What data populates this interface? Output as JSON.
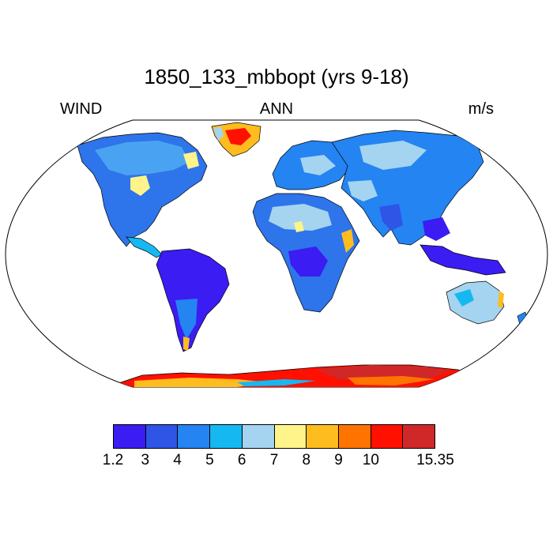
{
  "title": "1850_133_mbbopt (yrs 9-18)",
  "left_label": "WIND",
  "center_label": "ANN",
  "right_label": "m/s",
  "colorbar": {
    "labels": [
      "1.2",
      "3",
      "4",
      "5",
      "6",
      "7",
      "8",
      "9",
      "10",
      "15.35"
    ],
    "colors": [
      "#3b1cf2",
      "#2e55e6",
      "#2384f2",
      "#16b8f2",
      "#a4d4f0",
      "#fff48a",
      "#ffbc1e",
      "#ff7400",
      "#ff1000",
      "#d02828"
    ]
  },
  "map": {
    "projection": "Robinson",
    "ocean_color": "#ffffff",
    "outline_color": "#000000"
  }
}
